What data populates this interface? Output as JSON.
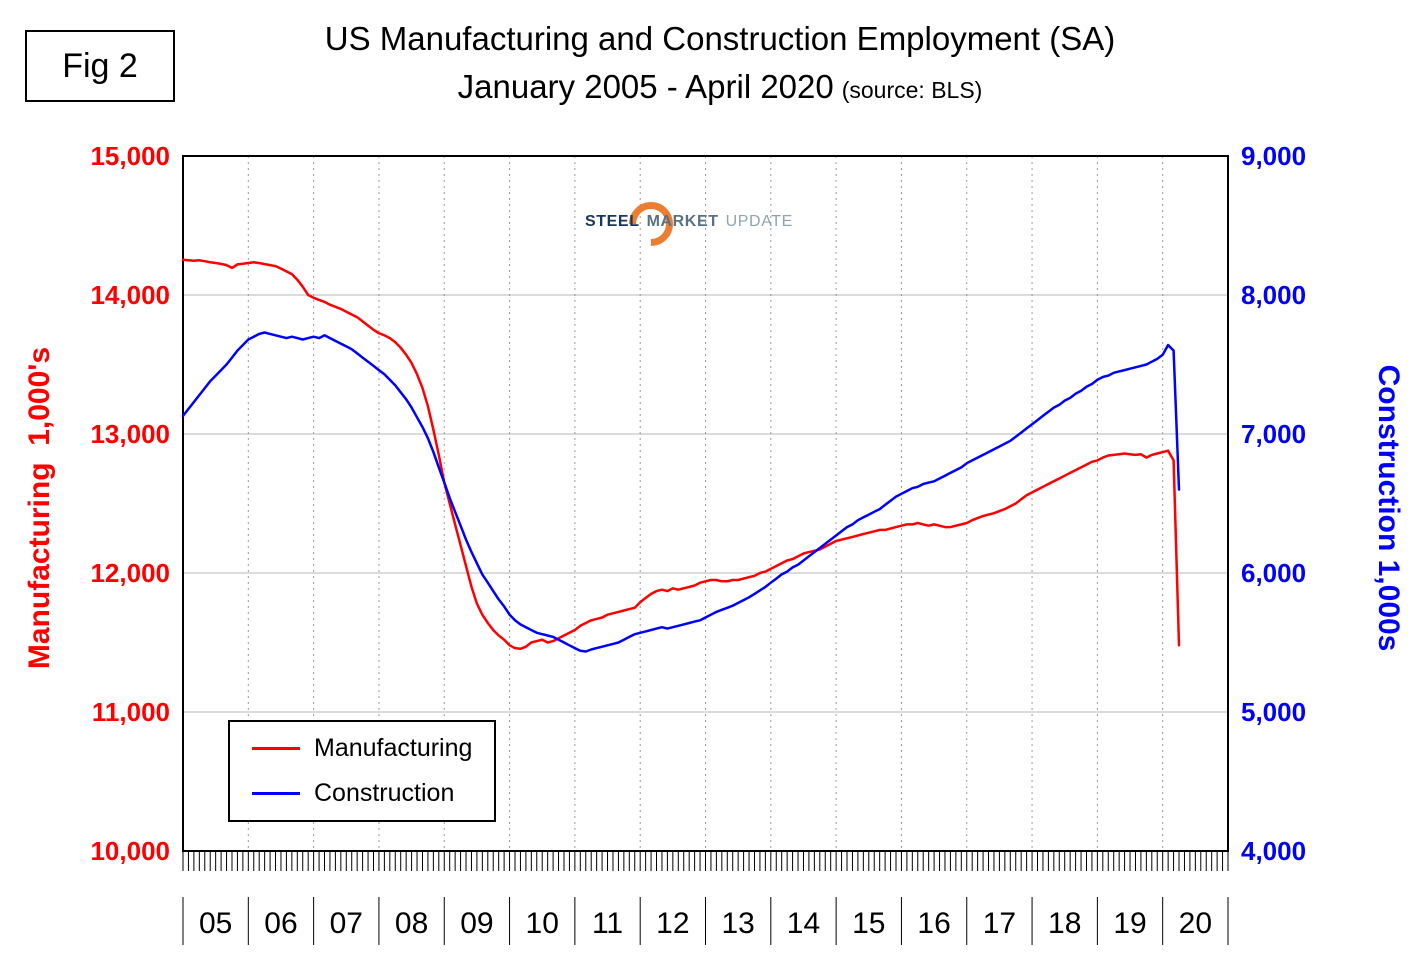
{
  "figure": {
    "label": "Fig 2"
  },
  "title": {
    "line1": "US Manufacturing and Construction Employment (SA)",
    "line2": "January 2005 - April 2020",
    "source": "(source: BLS)"
  },
  "logo": {
    "word1": "STEEL",
    "word2": "MARKET",
    "word3": "UPDATE"
  },
  "chart_data": {
    "type": "line",
    "title": "US Manufacturing and Construction Employment (SA), January 2005 - April 2020",
    "source": "BLS",
    "x_unit": "month",
    "x_start": "2005-01",
    "x_end": "2020-04",
    "x_tick_labels": [
      "05",
      "06",
      "07",
      "08",
      "09",
      "10",
      "11",
      "12",
      "13",
      "14",
      "15",
      "16",
      "17",
      "18",
      "19",
      "20"
    ],
    "grid": {
      "horizontal": "solid",
      "vertical": "dotted"
    },
    "legend_position": "bottom-left",
    "left_axis": {
      "label": "Manufacturing  1,000's",
      "min": 10000,
      "max": 15000,
      "ticks": [
        15000,
        14000,
        13000,
        12000,
        11000,
        10000
      ],
      "color": "#ff0000"
    },
    "right_axis": {
      "label": "Construction 1,000s",
      "min": 4000,
      "max": 9000,
      "ticks": [
        9000,
        8000,
        7000,
        6000,
        5000,
        4000
      ],
      "color": "#0000ff"
    },
    "series": [
      {
        "name": "Manufacturing",
        "color": "#ff0000",
        "axis": "left",
        "values": [
          14253,
          14250,
          14246,
          14250,
          14243,
          14235,
          14230,
          14224,
          14215,
          14195,
          14220,
          14225,
          14230,
          14235,
          14230,
          14222,
          14215,
          14208,
          14190,
          14170,
          14150,
          14110,
          14060,
          14000,
          13980,
          13965,
          13950,
          13930,
          13915,
          13900,
          13880,
          13860,
          13840,
          13810,
          13780,
          13750,
          13725,
          13710,
          13690,
          13660,
          13620,
          13570,
          13510,
          13430,
          13330,
          13200,
          13030,
          12850,
          12650,
          12500,
          12350,
          12200,
          12050,
          11900,
          11780,
          11700,
          11640,
          11590,
          11550,
          11520,
          11480,
          11460,
          11455,
          11470,
          11500,
          11510,
          11520,
          11500,
          11510,
          11530,
          11550,
          11570,
          11590,
          11620,
          11640,
          11660,
          11670,
          11680,
          11700,
          11710,
          11720,
          11730,
          11740,
          11750,
          11790,
          11820,
          11850,
          11870,
          11880,
          11870,
          11890,
          11880,
          11890,
          11900,
          11910,
          11930,
          11940,
          11950,
          11950,
          11940,
          11940,
          11950,
          11950,
          11960,
          11970,
          11980,
          12000,
          12010,
          12030,
          12050,
          12070,
          12090,
          12100,
          12120,
          12140,
          12150,
          12160,
          12170,
          12190,
          12210,
          12230,
          12240,
          12250,
          12260,
          12270,
          12280,
          12290,
          12300,
          12310,
          12310,
          12320,
          12330,
          12340,
          12350,
          12350,
          12360,
          12350,
          12340,
          12350,
          12340,
          12330,
          12330,
          12340,
          12350,
          12360,
          12380,
          12395,
          12410,
          12420,
          12430,
          12445,
          12460,
          12480,
          12500,
          12530,
          12560,
          12580,
          12600,
          12620,
          12640,
          12660,
          12680,
          12700,
          12720,
          12740,
          12760,
          12780,
          12800,
          12810,
          12830,
          12845,
          12850,
          12855,
          12860,
          12855,
          12850,
          12855,
          12830,
          12850,
          12860,
          12870,
          12880,
          12810,
          11480
        ]
      },
      {
        "name": "Construction",
        "color": "#0000ff",
        "axis": "right",
        "values": [
          7130,
          7180,
          7230,
          7280,
          7330,
          7380,
          7420,
          7460,
          7500,
          7550,
          7600,
          7640,
          7680,
          7700,
          7720,
          7730,
          7720,
          7710,
          7700,
          7690,
          7700,
          7690,
          7680,
          7690,
          7700,
          7690,
          7710,
          7690,
          7670,
          7650,
          7630,
          7610,
          7580,
          7550,
          7520,
          7490,
          7460,
          7430,
          7390,
          7350,
          7300,
          7250,
          7190,
          7120,
          7050,
          6970,
          6870,
          6760,
          6650,
          6540,
          6440,
          6340,
          6240,
          6150,
          6070,
          5990,
          5930,
          5870,
          5810,
          5760,
          5700,
          5660,
          5630,
          5610,
          5590,
          5570,
          5560,
          5550,
          5540,
          5520,
          5500,
          5480,
          5460,
          5440,
          5435,
          5450,
          5460,
          5470,
          5480,
          5490,
          5500,
          5520,
          5540,
          5560,
          5570,
          5580,
          5590,
          5600,
          5610,
          5600,
          5610,
          5620,
          5630,
          5640,
          5650,
          5660,
          5680,
          5700,
          5720,
          5735,
          5750,
          5765,
          5785,
          5805,
          5825,
          5850,
          5875,
          5900,
          5930,
          5960,
          5990,
          6010,
          6040,
          6060,
          6090,
          6120,
          6150,
          6180,
          6210,
          6240,
          6270,
          6300,
          6330,
          6350,
          6380,
          6400,
          6420,
          6440,
          6460,
          6490,
          6520,
          6550,
          6570,
          6590,
          6610,
          6620,
          6640,
          6650,
          6660,
          6680,
          6700,
          6720,
          6740,
          6760,
          6790,
          6810,
          6830,
          6850,
          6870,
          6890,
          6910,
          6930,
          6950,
          6980,
          7010,
          7040,
          7070,
          7100,
          7130,
          7160,
          7190,
          7210,
          7240,
          7260,
          7290,
          7310,
          7340,
          7360,
          7390,
          7410,
          7420,
          7440,
          7450,
          7460,
          7470,
          7480,
          7490,
          7500,
          7520,
          7540,
          7570,
          7640,
          7600,
          6600
        ]
      }
    ]
  }
}
